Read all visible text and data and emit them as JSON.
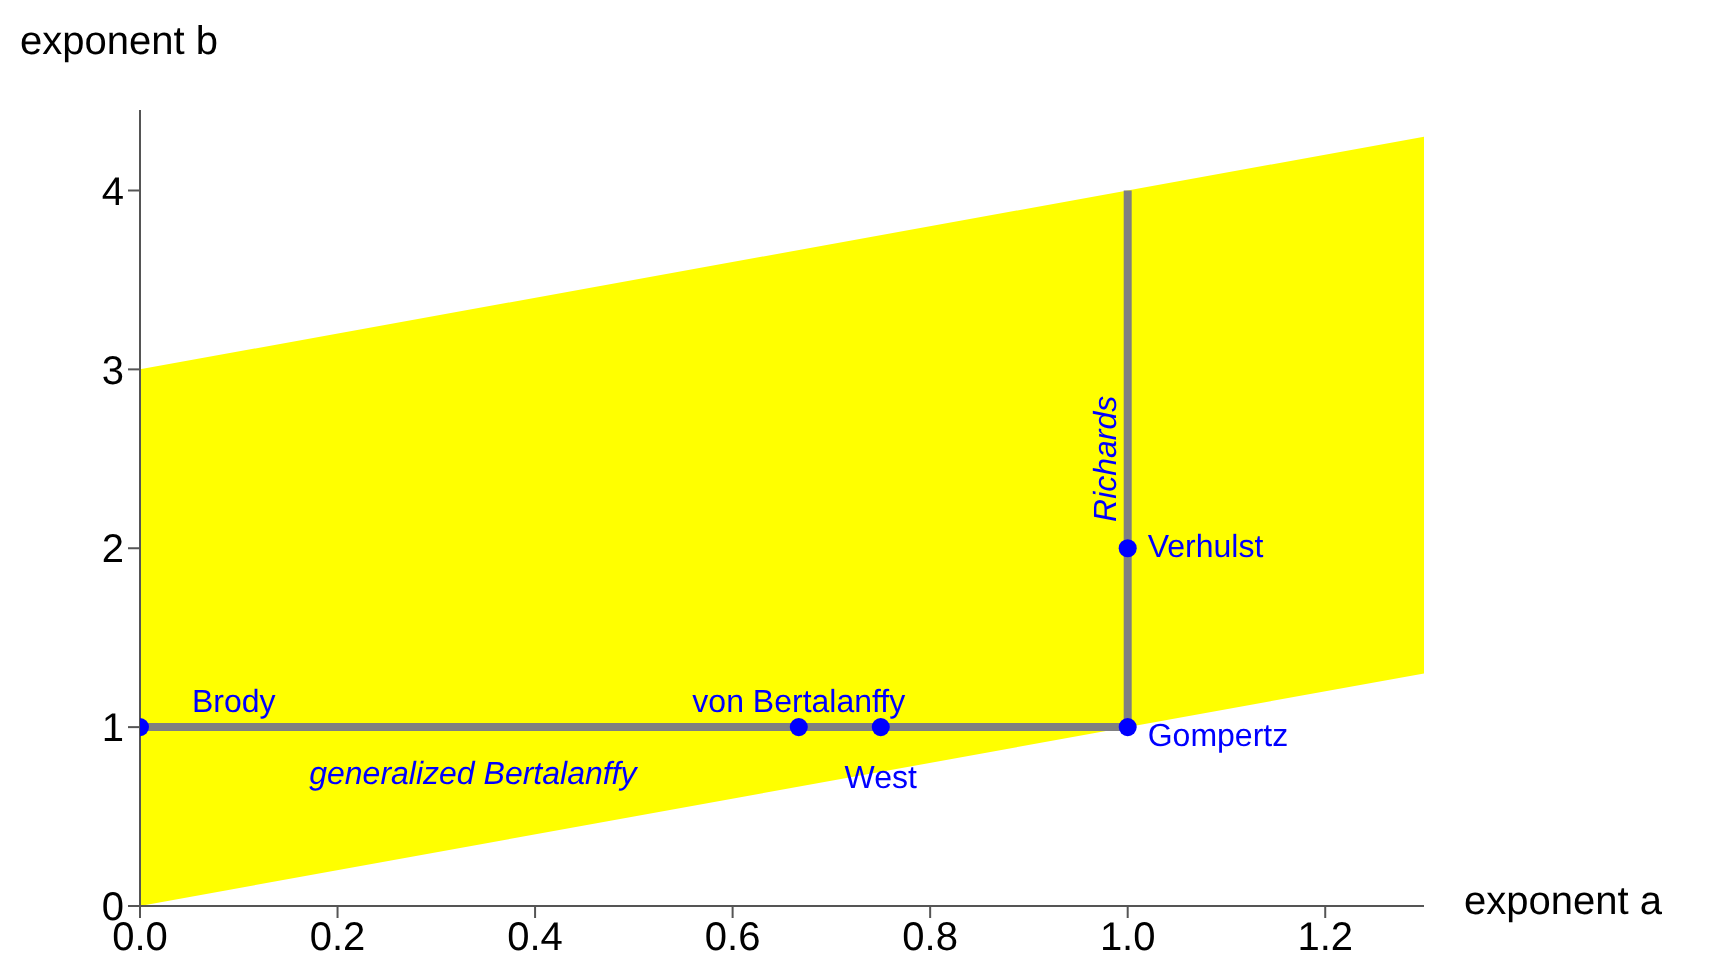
{
  "chart_data": {
    "type": "line",
    "xlabel": "exponent a",
    "ylabel": "exponent b",
    "xlim": [
      0,
      1.3
    ],
    "xticks": [
      {
        "value": 0,
        "label": "0.0"
      },
      0.2,
      0.4,
      0.6,
      0.8,
      {
        "value": 1,
        "label": "1.0"
      },
      1.2
    ],
    "ylim": [
      0,
      4.45
    ],
    "yticks": [
      0,
      1,
      2,
      3,
      4
    ],
    "grid": false,
    "series": [
      {
        "type": "line",
        "color": "#ffff00",
        "x": [
          0,
          1.3
        ],
        "values": [
          null,
          null
        ],
        "lower": [
          0,
          1.3
        ],
        "upper": [
          3,
          4.3
        ]
      },
      {
        "color": "#808080",
        "x": [
          0,
          1
        ],
        "values": [
          1,
          1
        ]
      },
      {
        "color": "#808080",
        "x": [
          1,
          1
        ],
        "values": [
          1,
          4
        ]
      },
      {
        "type": "scatter",
        "color": "#0000ff",
        "marker": "circle",
        "x": [
          0,
          0.667,
          0.75,
          1,
          1
        ],
        "values": [
          1,
          1,
          1,
          1,
          2
        ]
      }
    ],
    "annotations": [
      {
        "text": "Brody",
        "x": 0,
        "y": 1
      },
      {
        "text": "von Bertalanffy",
        "x": 0.667,
        "y": 1
      },
      {
        "text": "West",
        "x": 0.75,
        "y": 1
      },
      {
        "text": "Gompertz",
        "x": 1,
        "y": 1
      },
      {
        "text": "Verhulst",
        "x": 1,
        "y": 2
      },
      {
        "text": "generalized Bertalanffy",
        "x": 0.337,
        "y": 1
      },
      {
        "text": "Richards",
        "x": 1,
        "y": 2.5
      }
    ]
  }
}
